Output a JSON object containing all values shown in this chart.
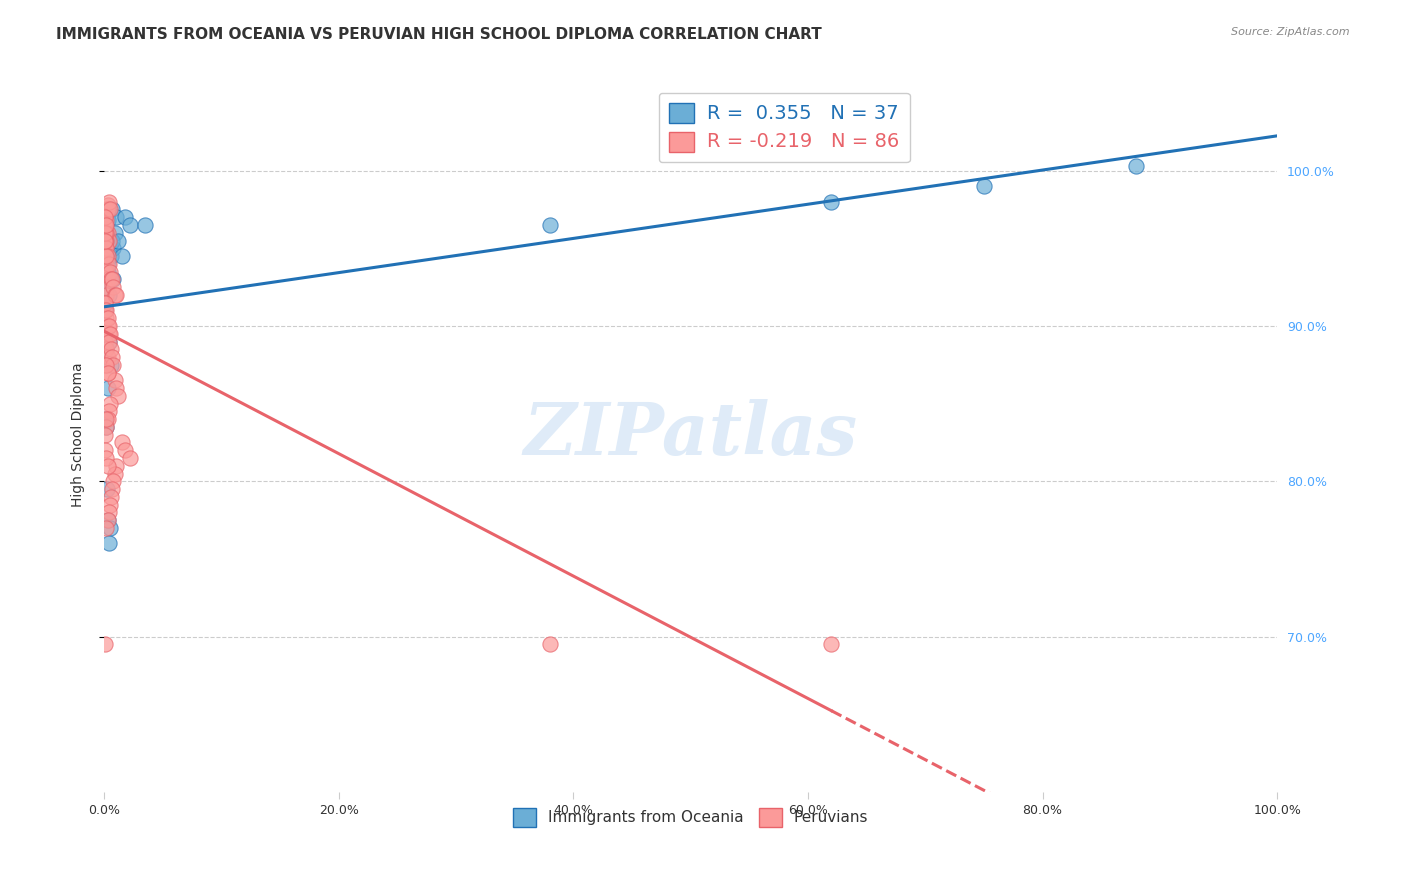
{
  "title": "IMMIGRANTS FROM OCEANIA VS PERUVIAN HIGH SCHOOL DIPLOMA CORRELATION CHART",
  "source": "Source: ZipAtlas.com",
  "xlabel": "",
  "ylabel": "High School Diploma",
  "legend_blue_r": "R =  0.355",
  "legend_blue_n": "N = 37",
  "legend_pink_r": "R = -0.219",
  "legend_pink_n": "N = 86",
  "legend_label_blue": "Immigrants from Oceania",
  "legend_label_pink": "Peruvians",
  "blue_color": "#6baed6",
  "pink_color": "#fb9a99",
  "trend_blue_color": "#2171b5",
  "trend_pink_color": "#e8636a",
  "watermark": "ZIPatlas",
  "blue_x": [
    0.001,
    0.002,
    0.003,
    0.004,
    0.005,
    0.006,
    0.007,
    0.008,
    0.009,
    0.01,
    0.001,
    0.002,
    0.003,
    0.004,
    0.003,
    0.005,
    0.004,
    0.002,
    0.006,
    0.003,
    0.001,
    0.002,
    0.003,
    0.005,
    0.004,
    0.008,
    0.007,
    0.012,
    0.015,
    0.018,
    0.022,
    0.035,
    0.38,
    0.62,
    0.75,
    0.88,
    0.0025
  ],
  "blue_y": [
    0.952,
    0.955,
    0.968,
    0.975,
    0.952,
    0.945,
    0.975,
    0.95,
    0.96,
    0.97,
    0.91,
    0.925,
    0.935,
    0.92,
    0.94,
    0.93,
    0.89,
    0.885,
    0.875,
    0.86,
    0.84,
    0.835,
    0.775,
    0.77,
    0.76,
    0.93,
    0.955,
    0.955,
    0.945,
    0.97,
    0.965,
    0.965,
    0.965,
    0.98,
    0.99,
    1.003,
    0.795
  ],
  "pink_x": [
    0.001,
    0.002,
    0.003,
    0.001,
    0.002,
    0.003,
    0.004,
    0.001,
    0.002,
    0.003,
    0.001,
    0.002,
    0.001,
    0.002,
    0.001,
    0.002,
    0.003,
    0.001,
    0.002,
    0.001,
    0.001,
    0.002,
    0.003,
    0.004,
    0.001,
    0.002,
    0.003,
    0.001,
    0.001,
    0.002,
    0.001,
    0.002,
    0.003,
    0.004,
    0.005,
    0.006,
    0.007,
    0.008,
    0.009,
    0.01,
    0.001,
    0.002,
    0.003,
    0.004,
    0.005,
    0.004,
    0.006,
    0.007,
    0.008,
    0.003,
    0.009,
    0.01,
    0.012,
    0.005,
    0.004,
    0.003,
    0.002,
    0.001,
    0.015,
    0.018,
    0.022,
    0.01,
    0.009,
    0.008,
    0.007,
    0.006,
    0.005,
    0.004,
    0.003,
    0.002,
    0.001,
    0.002,
    0.003,
    0.004,
    0.005,
    0.38,
    0.62,
    0.001,
    0.001,
    0.002,
    0.002,
    0.003,
    0.002,
    0.001,
    0.001,
    0.002
  ],
  "pink_y": [
    0.97,
    0.975,
    0.978,
    0.965,
    0.962,
    0.96,
    0.955,
    0.972,
    0.968,
    0.975,
    0.95,
    0.955,
    0.945,
    0.94,
    0.935,
    0.935,
    0.93,
    0.925,
    0.92,
    0.915,
    0.91,
    0.905,
    0.9,
    0.895,
    0.89,
    0.885,
    0.88,
    0.875,
    0.965,
    0.96,
    0.955,
    0.95,
    0.945,
    0.94,
    0.935,
    0.93,
    0.93,
    0.925,
    0.92,
    0.92,
    0.915,
    0.91,
    0.905,
    0.9,
    0.895,
    0.89,
    0.885,
    0.88,
    0.875,
    0.87,
    0.865,
    0.86,
    0.855,
    0.85,
    0.845,
    0.84,
    0.835,
    0.83,
    0.825,
    0.82,
    0.815,
    0.81,
    0.805,
    0.8,
    0.795,
    0.79,
    0.785,
    0.78,
    0.775,
    0.77,
    0.82,
    0.815,
    0.81,
    0.98,
    0.975,
    0.695,
    0.695,
    0.96,
    0.97,
    0.965,
    0.875,
    0.87,
    0.945,
    0.955,
    0.695,
    0.84
  ],
  "xlim": [
    0.0,
    1.0
  ],
  "ylim": [
    0.6,
    1.06
  ],
  "ytick_vals": [
    0.7,
    0.8,
    0.9,
    1.0
  ],
  "ytick_right_labels": [
    "70.0%",
    "80.0%",
    "90.0%",
    "100.0%"
  ],
  "xtick_labels": [
    "0.0%",
    "20.0%",
    "40.0%",
    "60.0%",
    "80.0%",
    "100.0%"
  ],
  "xtick_vals": [
    0.0,
    0.2,
    0.4,
    0.6,
    0.8,
    1.0
  ],
  "background_color": "#ffffff",
  "grid_color": "#cccccc",
  "title_fontsize": 11,
  "axis_label_fontsize": 10,
  "tick_fontsize": 9,
  "legend_fontsize": 12
}
